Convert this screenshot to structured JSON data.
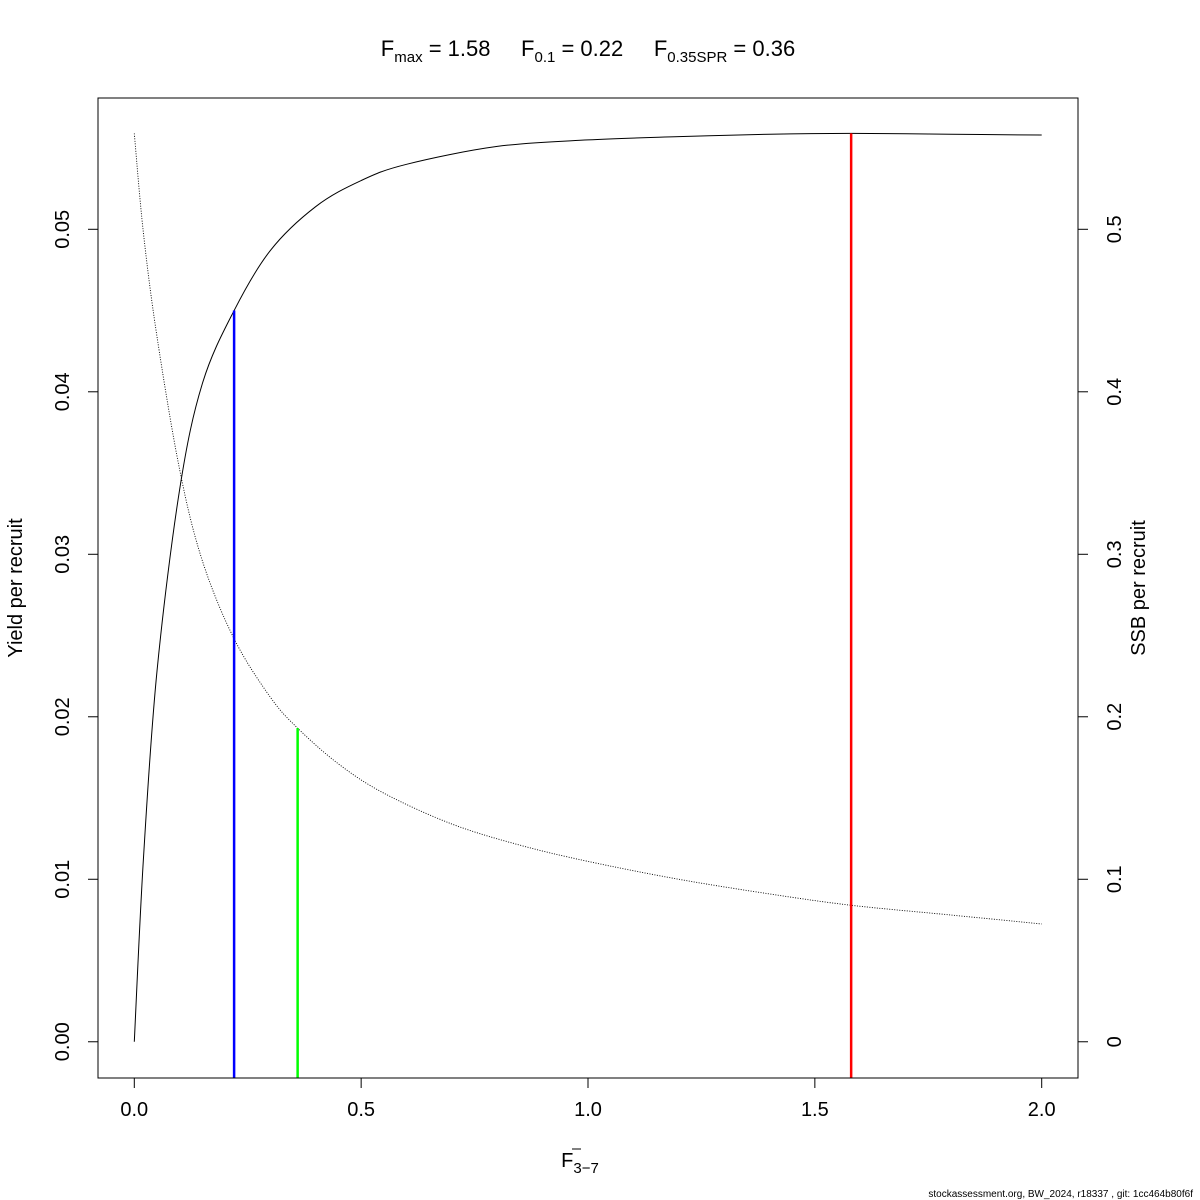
{
  "title": {
    "fmax_main": "F",
    "fmax_sub": "max",
    "fmax_eq": " = 1.58",
    "f01_main": "F",
    "f01_sub": "0.1",
    "f01_eq": " = 0.22",
    "fspr_main": "F",
    "fspr_sub": "0.35SPR",
    "fspr_eq": " = 0.36"
  },
  "axes": {
    "xlabel_main": "F",
    "xlabel_sub": "3−7",
    "ylabel_left": "Yield per recruit",
    "ylabel_right": "SSB per recruit"
  },
  "footer": "stockassessment.org, BW_2024, r18337 , git: 1cc464b80f6f",
  "chart_data": {
    "type": "line",
    "x_ticks": [
      "0.0",
      "0.5",
      "1.0",
      "1.5",
      "2.0"
    ],
    "x_tick_values": [
      0,
      0.5,
      1.0,
      1.5,
      2.0
    ],
    "y_left_ticks": [
      "0.00",
      "0.01",
      "0.02",
      "0.03",
      "0.04",
      "0.05"
    ],
    "y_left_tick_values": [
      0,
      0.01,
      0.02,
      0.03,
      0.04,
      0.05
    ],
    "y_right_ticks": [
      "0",
      "0.1",
      "0.2",
      "0.3",
      "0.4",
      "0.5"
    ],
    "y_right_tick_values": [
      0,
      0.1,
      0.2,
      0.3,
      0.4,
      0.5
    ],
    "xlim": [
      -0.08,
      2.08
    ],
    "ylim_left": [
      -0.00223,
      0.05808
    ],
    "ylim_right": [
      -0.0223,
      0.5808
    ],
    "grid": false,
    "series": [
      {
        "axis": "left",
        "style": "solid",
        "color": "#000000",
        "x": [
          0,
          0.02,
          0.05,
          0.1,
          0.15,
          0.22,
          0.3,
          0.4,
          0.5,
          0.6,
          0.8,
          1.0,
          1.2,
          1.4,
          1.58,
          1.8,
          2.0
        ],
        "y": [
          0,
          0.0112,
          0.0228,
          0.034,
          0.0405,
          0.045,
          0.0487,
          0.0514,
          0.053,
          0.054,
          0.0551,
          0.0555,
          0.0557,
          0.05585,
          0.0559,
          0.05585,
          0.0558
        ]
      },
      {
        "axis": "right",
        "style": "dotted",
        "color": "#000000",
        "x": [
          0,
          0.02,
          0.05,
          0.1,
          0.15,
          0.22,
          0.3,
          0.36,
          0.45,
          0.55,
          0.7,
          0.85,
          1.0,
          1.2,
          1.4,
          1.58,
          1.8,
          2.0
        ],
        "y": [
          0.559,
          0.498,
          0.434,
          0.352,
          0.296,
          0.248,
          0.212,
          0.193,
          0.171,
          0.153,
          0.134,
          0.121,
          0.111,
          0.1,
          0.091,
          0.084,
          0.078,
          0.0725
        ]
      }
    ],
    "reference_lines": [
      {
        "name": "F0.1",
        "x": 0.22,
        "y_left_top": 0.045,
        "color": "#0000ff"
      },
      {
        "name": "F0.35SPR",
        "x": 0.36,
        "y_right_top": 0.193,
        "color": "#00ff00"
      },
      {
        "name": "Fmax",
        "x": 1.58,
        "y_left_top": 0.0559,
        "color": "#ff0000"
      }
    ]
  }
}
